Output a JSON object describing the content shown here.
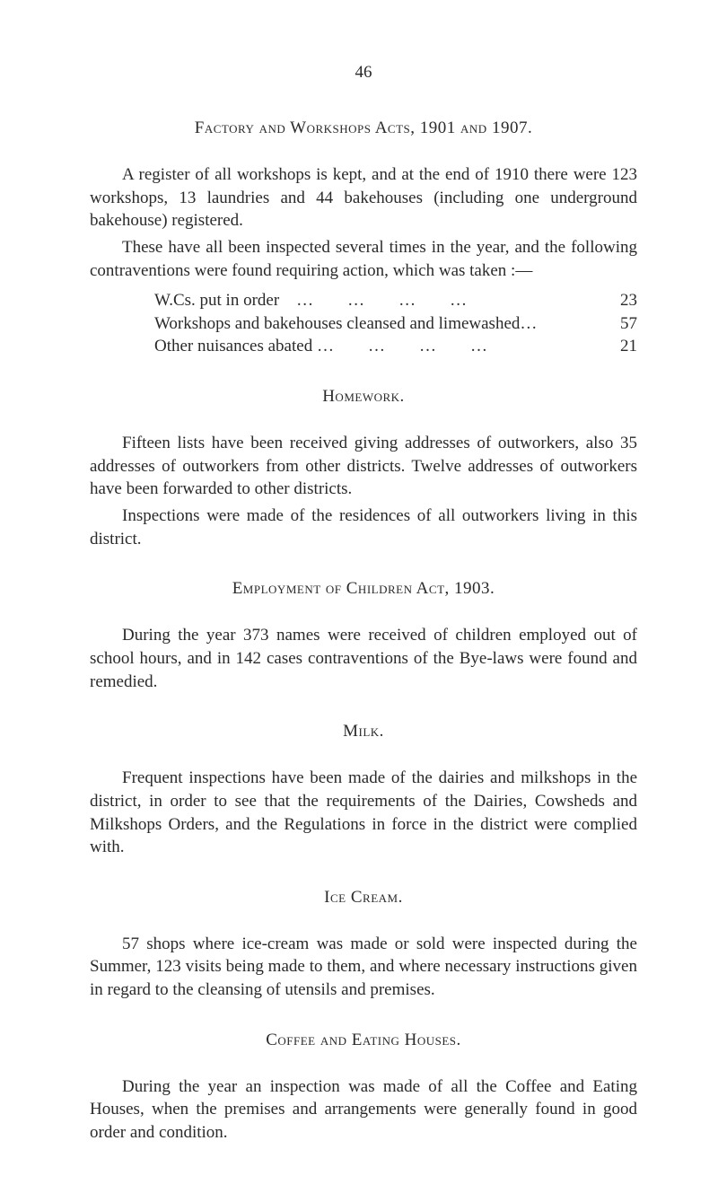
{
  "page_number": "46",
  "section_factory": {
    "heading": "Factory and Workshops Acts, 1901 and 1907.",
    "p1": "A register of all workshops is kept, and at the end of 1910 there were 123 workshops, 13 laundries and 44 bakehouses (including one underground bakehouse) registered.",
    "p2": "These have all been inspected several times in the year, and the following contraventions were found requiring action, which was taken :—",
    "list": [
      {
        "label": "W.Cs. put in order",
        "value": "23"
      },
      {
        "label": "Workshops and bakehouses cleansed and limewashed…",
        "value": "57"
      },
      {
        "label": "Other nuisances abated …",
        "value": "21"
      }
    ]
  },
  "section_homework": {
    "heading": "Homework.",
    "p1": "Fifteen lists have been received giving addresses of outworkers, also 35 addresses of outworkers from other districts. Twelve addresses of outworkers have been forwarded to other districts.",
    "p2": "Inspections were made of the residences of all outworkers living in this district."
  },
  "section_employment": {
    "heading": "Employment of Children Act, 1903.",
    "p1": "During the year 373 names were received of children employed out of school hours, and in 142 cases contraventions of the Bye-laws were found and remedied."
  },
  "section_milk": {
    "heading": "Milk.",
    "p1": "Frequent inspections have been made of the dairies and milkshops in the district, in order to see that the requirements of the Dairies, Cowsheds and Milkshops Orders, and the Regulations in force in the district were complied with."
  },
  "section_icecream": {
    "heading": "Ice Cream.",
    "p1": "57 shops where ice-cream was made or sold were inspected during the Summer, 123 visits being made to them, and where necessary instructions given in regard to the cleansing of utensils and premises."
  },
  "section_coffee": {
    "heading": "Coffee and Eating Houses.",
    "p1": "During the year an inspection was made of all the Coffee and Eating Houses, when the premises and arrangements were generally found in good order and condition."
  }
}
